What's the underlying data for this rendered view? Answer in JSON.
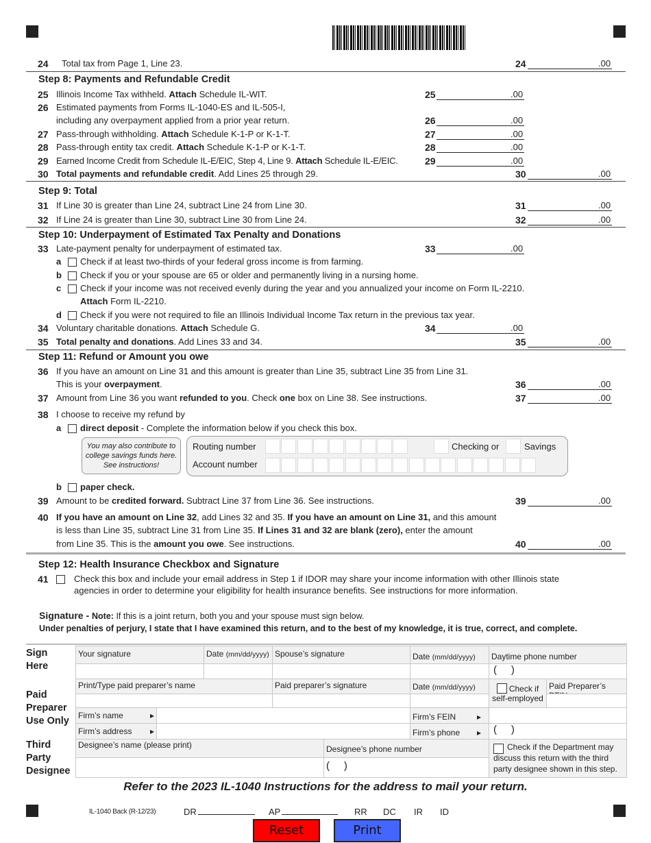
{
  "lines": {
    "l24": {
      "num": "24",
      "text": [
        [
          "Total tax from Page 1, Line 23.",
          0
        ]
      ],
      "ref": "24",
      "cents": ".00"
    },
    "s8": "Step 8: Payments and Refundable Credit",
    "l25": {
      "num": "25",
      "text": [
        [
          "Illinois Income Tax withheld. ",
          0
        ],
        [
          "Attach",
          1
        ],
        [
          " Schedule IL-WIT.",
          0
        ]
      ],
      "ref": "25",
      "cents": ".00"
    },
    "l26": {
      "num": "26",
      "text": [
        [
          "Estimated payments from Forms IL-1040-ES and IL-505-I,",
          0
        ]
      ],
      "text2": [
        [
          "including any overpayment applied from a prior year return.",
          0
        ]
      ],
      "ref": "26",
      "cents": ".00"
    },
    "l27": {
      "num": "27",
      "text": [
        [
          "Pass-through withholding. ",
          0
        ],
        [
          "Attach",
          1
        ],
        [
          " Schedule K-1-P or K-1-T.",
          0
        ]
      ],
      "ref": "27",
      "cents": ".00"
    },
    "l28": {
      "num": "28",
      "text": [
        [
          "Pass-through entity tax credit. ",
          0
        ],
        [
          "Attach",
          1
        ],
        [
          " Schedule K-1-P or K-1-T.",
          0
        ]
      ],
      "ref": "28",
      "cents": ".00"
    },
    "l29": {
      "num": "29",
      "text": [
        [
          "Earned Income Credit from Schedule IL-E/EIC, Step 4, Line 9. ",
          0
        ],
        [
          "Attach",
          1
        ],
        [
          " Schedule IL-E/EIC.",
          0
        ]
      ],
      "ref": "29",
      "cents": ".00"
    },
    "l30": {
      "num": "30",
      "text": [
        [
          "Total payments and refundable credit",
          1
        ],
        [
          ". Add Lines 25 through 29.",
          0
        ]
      ],
      "ref": "30",
      "cents": ".00"
    },
    "s9": "Step 9: Total",
    "l31": {
      "num": "31",
      "text": [
        [
          "If Line 30 is greater than Line 24, subtract Line 24 from Line 30.",
          0
        ]
      ],
      "ref": "31",
      "cents": ".00"
    },
    "l32": {
      "num": "32",
      "text": [
        [
          "If Line 24 is greater than Line 30, subtract Line 30 from Line 24.",
          0
        ]
      ],
      "ref": "32",
      "cents": ".00"
    },
    "s10": "Step 10: Underpayment of Estimated Tax Penalty and Donations",
    "l33": {
      "num": "33",
      "text": [
        [
          "Late-payment penalty for underpayment of estimated tax.",
          0
        ]
      ],
      "ref": "33",
      "cents": ".00"
    },
    "l33a": {
      "letter": "a",
      "text": [
        [
          "Check if at least two-thirds of your federal gross income is from farming.",
          0
        ]
      ]
    },
    "l33b": {
      "letter": "b",
      "text": [
        [
          "Check if you or your spouse are 65 or older and permanently living in a nursing home.",
          0
        ]
      ]
    },
    "l33c": {
      "letter": "c",
      "text": [
        [
          "Check if your income was not received evenly during the year and you annualized your income on Form IL-2210.",
          0
        ]
      ],
      "text2": [
        [
          "Attach",
          1
        ],
        [
          " Form IL-2210.",
          0
        ]
      ]
    },
    "l33d": {
      "letter": "d",
      "text": [
        [
          "Check if you were not required to file an Illinois Individual Income Tax return in the previous tax year.",
          0
        ]
      ]
    },
    "l34": {
      "num": "34",
      "text": [
        [
          "Voluntary charitable donations. ",
          0
        ],
        [
          "Attach",
          1
        ],
        [
          " Schedule G.",
          0
        ]
      ],
      "ref": "34",
      "cents": ".00"
    },
    "l35": {
      "num": "35",
      "text": [
        [
          "Total penalty and donations",
          1
        ],
        [
          ". Add Lines 33 and 34.",
          0
        ]
      ],
      "ref": "35",
      "cents": ".00"
    },
    "s11": "Step 11: Refund or Amount you owe",
    "l36": {
      "num": "36",
      "text": [
        [
          "If you have an amount on Line 31 and this amount is greater than Line 35, subtract Line 35 from Line 31.",
          0
        ]
      ],
      "text2": [
        [
          "This is your ",
          0
        ],
        [
          "overpayment",
          1
        ],
        [
          ".",
          0
        ]
      ],
      "ref": "36",
      "cents": ".00"
    },
    "l37": {
      "num": "37",
      "text": [
        [
          "Amount from Line 36 you want ",
          0
        ],
        [
          "refunded to you",
          1
        ],
        [
          ". Check ",
          0
        ],
        [
          "one",
          1
        ],
        [
          " box on Line 38. See instructions.",
          0
        ]
      ],
      "ref": "37",
      "cents": ".00"
    },
    "l38": {
      "num": "38",
      "text": [
        [
          "I choose to receive my refund by",
          0
        ]
      ]
    },
    "l38a": {
      "letter": "a",
      "text": [
        [
          "direct deposit",
          1
        ],
        [
          " - Complete the information below if you check this box.",
          0
        ]
      ]
    },
    "l38b": {
      "letter": "b",
      "text": [
        [
          "paper check.",
          1
        ]
      ]
    },
    "l39": {
      "num": "39",
      "text": [
        [
          "Amount to be ",
          0
        ],
        [
          "credited forward.",
          1
        ],
        [
          " Subtract Line 37 from Line 36. See instructions.",
          0
        ]
      ],
      "ref": "39",
      "cents": ".00"
    },
    "l40": {
      "num": "40",
      "text": [
        [
          "If you have an amount on Line 32",
          1
        ],
        [
          ", add Lines 32 and 35. ",
          0
        ],
        [
          "If you have an amount on Line 31,",
          1
        ],
        [
          " and this amount",
          0
        ]
      ],
      "text2": [
        [
          "is less than Line 35, subtract Line 31 from Line 35. ",
          0
        ],
        [
          "If Lines 31 and 32 are blank (zero),",
          1
        ],
        [
          " enter the amount",
          0
        ]
      ],
      "text3": [
        [
          "from Line 35. This is the ",
          0
        ],
        [
          "amount you owe",
          1
        ],
        [
          ". See instructions.",
          0
        ]
      ],
      "ref": "40",
      "cents": ".00"
    },
    "s12": "Step 12:  Health Insurance Checkbox and Signature",
    "l41": {
      "num": "41",
      "text": [
        [
          "Check this box and include your email address in Step 1 if IDOR may share your income information with other Illinois state",
          0
        ]
      ],
      "text2": [
        [
          "agencies in order to determine your eligibility for health insurance benefits. See instructions for more information.",
          0
        ]
      ]
    }
  },
  "deposit": {
    "note": "You may also contribute to college savings funds here. See instructions!",
    "routing": "Routing number",
    "account": "Account number",
    "checking": "Checking or",
    "savings": "Savings"
  },
  "signature": {
    "title": "Signature - ",
    "note_label": "Note:",
    "note": " If this is a joint return, both you and your spouse must sign below.",
    "perjury": "Under penalties of perjury, I state that I have examined this return, and to the best of my knowledge, it is true, correct, and complete."
  },
  "table": {
    "sign_here": "Sign Here",
    "your_sig": "Your signature",
    "date": "Date ",
    "date_fmt": "(mm/dd/yyyy)",
    "spouse_sig": "Spouse’s signature",
    "phone": "Daytime phone number",
    "paren": "(     )",
    "paid_preparer": "Paid Preparer Use Only",
    "prep_name": "Print/Type paid preparer’s name",
    "prep_sig": "Paid preparer’s signature",
    "check_if": "Check if",
    "self_employed": "self-employed",
    "ptin": "Paid Preparer’s PTIN",
    "firm_name": "Firm’s name",
    "firm_address": "Firm’s address",
    "firm_fein": "Firm’s FEIN",
    "firm_phone": "Firm’s phone",
    "third_party": "Third Party Designee",
    "designee_name": "Designee’s name (please print)",
    "designee_phone": "Designee’s phone number",
    "dept_check": "Check if the Department may discuss this return with the third party designee shown in this step."
  },
  "footer": {
    "mail_note": "Refer to the 2023 IL-1040 Instructions for the address to mail your return.",
    "form_id": "IL-1040 Back (R-12/23)",
    "dr": "DR",
    "ap": "AP",
    "rr": "RR",
    "dc": "DC",
    "ir": "IR",
    "id": "ID"
  },
  "buttons": {
    "reset": "Reset",
    "print": "Print",
    "reset_color": "#ff0000",
    "print_color": "#4466ff"
  }
}
